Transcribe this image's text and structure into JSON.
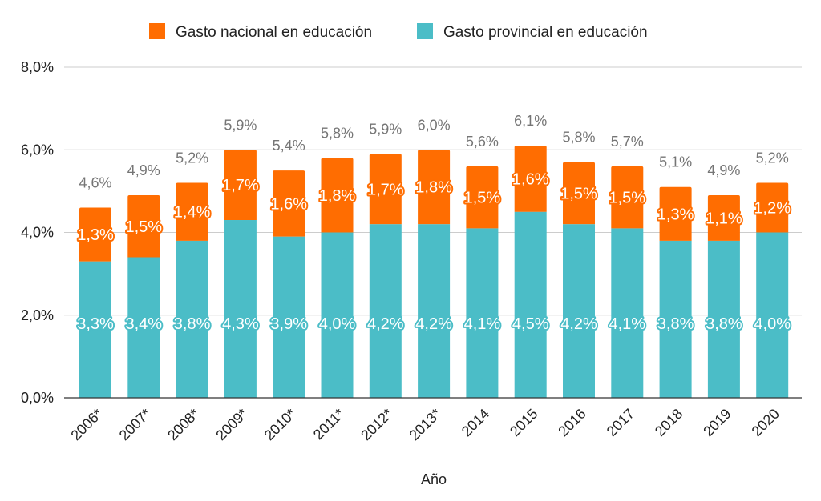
{
  "chart_data": {
    "type": "bar",
    "stacked": true,
    "categories": [
      "2006*",
      "2007*",
      "2008*",
      "2009*",
      "2010*",
      "2011*",
      "2012*",
      "2013*",
      "2014",
      "2015",
      "2016",
      "2017",
      "2018",
      "2019",
      "2020"
    ],
    "series": [
      {
        "name": "Gasto provincial en educación",
        "color": "#4BBDC7",
        "values": [
          3.3,
          3.4,
          3.8,
          4.3,
          3.9,
          4.0,
          4.2,
          4.2,
          4.1,
          4.5,
          4.2,
          4.1,
          3.8,
          3.8,
          4.0
        ],
        "labels": [
          "3,3%",
          "3,4%",
          "3,8%",
          "4,3%",
          "3,9%",
          "4,0%",
          "4,2%",
          "4,2%",
          "4,1%",
          "4,5%",
          "4,2%",
          "4,1%",
          "3,8%",
          "3,8%",
          "4,0%"
        ]
      },
      {
        "name": "Gasto nacional en educación",
        "color": "#FF6D01",
        "values": [
          1.3,
          1.5,
          1.4,
          1.7,
          1.6,
          1.8,
          1.7,
          1.8,
          1.5,
          1.6,
          1.5,
          1.5,
          1.3,
          1.1,
          1.2
        ],
        "labels": [
          "1,3%",
          "1,5%",
          "1,4%",
          "1,7%",
          "1,6%",
          "1,8%",
          "1,7%",
          "1,8%",
          "1,5%",
          "1,6%",
          "1,5%",
          "1,5%",
          "1,3%",
          "1,1%",
          "1,2%"
        ]
      }
    ],
    "totals": [
      "4,6%",
      "4,9%",
      "5,2%",
      "5,9%",
      "5,4%",
      "5,8%",
      "5,9%",
      "6,0%",
      "5,6%",
      "6,1%",
      "5,8%",
      "5,7%",
      "5,1%",
      "4,9%",
      "5,2%"
    ],
    "legend": [
      {
        "name": "Gasto nacional en educación",
        "color": "#FF6D01"
      },
      {
        "name": "Gasto provincial en educación",
        "color": "#4BBDC7"
      }
    ],
    "legend_position": "top",
    "xlabel": "Año",
    "ylabel": "",
    "ylim": [
      0,
      8
    ],
    "yticks": [
      0,
      2,
      4,
      6,
      8
    ],
    "ytick_labels": [
      "0,0%",
      "2,0%",
      "4,0%",
      "6,0%",
      "8,0%"
    ],
    "grid": true
  }
}
